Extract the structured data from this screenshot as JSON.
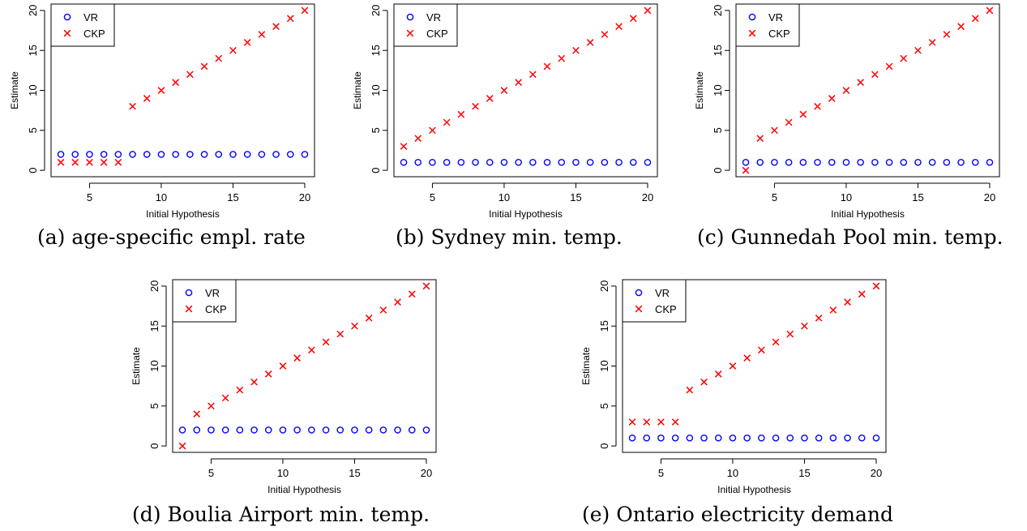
{
  "chart_data": [
    {
      "type": "scatter",
      "caption": "(a) age-specific empl. rate",
      "xlabel": "Initial Hypothesis",
      "ylabel": "Estimate",
      "xlim": [
        3,
        20
      ],
      "ylim": [
        0,
        20
      ],
      "xticks": [
        5,
        10,
        15,
        20
      ],
      "yticks": [
        0,
        5,
        10,
        15,
        20
      ],
      "legend_position": "top-left",
      "x": [
        3,
        4,
        5,
        6,
        7,
        8,
        9,
        10,
        11,
        12,
        13,
        14,
        15,
        16,
        17,
        18,
        19,
        20
      ],
      "series": [
        {
          "name": "VR",
          "marker": "circle",
          "color": "#0000ff",
          "values": [
            2,
            2,
            2,
            2,
            2,
            2,
            2,
            2,
            2,
            2,
            2,
            2,
            2,
            2,
            2,
            2,
            2,
            2
          ]
        },
        {
          "name": "CKP",
          "marker": "cross",
          "color": "#ff0000",
          "values": [
            1,
            1,
            1,
            1,
            1,
            8,
            9,
            10,
            11,
            12,
            13,
            14,
            15,
            16,
            17,
            18,
            19,
            20
          ]
        }
      ]
    },
    {
      "type": "scatter",
      "caption": "(b) Sydney min. temp.",
      "xlabel": "Initial Hypothesis",
      "ylabel": "Estimate",
      "xlim": [
        3,
        20
      ],
      "ylim": [
        0,
        20
      ],
      "xticks": [
        5,
        10,
        15,
        20
      ],
      "yticks": [
        0,
        5,
        10,
        15,
        20
      ],
      "legend_position": "top-left",
      "x": [
        3,
        4,
        5,
        6,
        7,
        8,
        9,
        10,
        11,
        12,
        13,
        14,
        15,
        16,
        17,
        18,
        19,
        20
      ],
      "series": [
        {
          "name": "VR",
          "marker": "circle",
          "color": "#0000ff",
          "values": [
            1,
            1,
            1,
            1,
            1,
            1,
            1,
            1,
            1,
            1,
            1,
            1,
            1,
            1,
            1,
            1,
            1,
            1
          ]
        },
        {
          "name": "CKP",
          "marker": "cross",
          "color": "#ff0000",
          "values": [
            3,
            4,
            5,
            6,
            7,
            8,
            9,
            10,
            11,
            12,
            13,
            14,
            15,
            16,
            17,
            18,
            19,
            20
          ]
        }
      ]
    },
    {
      "type": "scatter",
      "caption": "(c) Gunnedah Pool min. temp.",
      "xlabel": "Initial Hypothesis",
      "ylabel": "Estimate",
      "xlim": [
        3,
        20
      ],
      "ylim": [
        0,
        20
      ],
      "xticks": [
        5,
        10,
        15,
        20
      ],
      "yticks": [
        0,
        5,
        10,
        15,
        20
      ],
      "legend_position": "top-left",
      "x": [
        3,
        4,
        5,
        6,
        7,
        8,
        9,
        10,
        11,
        12,
        13,
        14,
        15,
        16,
        17,
        18,
        19,
        20
      ],
      "series": [
        {
          "name": "VR",
          "marker": "circle",
          "color": "#0000ff",
          "values": [
            1,
            1,
            1,
            1,
            1,
            1,
            1,
            1,
            1,
            1,
            1,
            1,
            1,
            1,
            1,
            1,
            1,
            1
          ]
        },
        {
          "name": "CKP",
          "marker": "cross",
          "color": "#ff0000",
          "values": [
            0,
            4,
            5,
            6,
            7,
            8,
            9,
            10,
            11,
            12,
            13,
            14,
            15,
            16,
            17,
            18,
            19,
            20
          ]
        }
      ]
    },
    {
      "type": "scatter",
      "caption": "(d) Boulia Airport min. temp.",
      "xlabel": "Initial Hypothesis",
      "ylabel": "Estimate",
      "xlim": [
        3,
        20
      ],
      "ylim": [
        0,
        20
      ],
      "xticks": [
        5,
        10,
        15,
        20
      ],
      "yticks": [
        0,
        5,
        10,
        15,
        20
      ],
      "legend_position": "top-left",
      "x": [
        3,
        4,
        5,
        6,
        7,
        8,
        9,
        10,
        11,
        12,
        13,
        14,
        15,
        16,
        17,
        18,
        19,
        20
      ],
      "series": [
        {
          "name": "VR",
          "marker": "circle",
          "color": "#0000ff",
          "values": [
            2,
            2,
            2,
            2,
            2,
            2,
            2,
            2,
            2,
            2,
            2,
            2,
            2,
            2,
            2,
            2,
            2,
            2
          ]
        },
        {
          "name": "CKP",
          "marker": "cross",
          "color": "#ff0000",
          "values": [
            0,
            4,
            5,
            6,
            7,
            8,
            9,
            10,
            11,
            12,
            13,
            14,
            15,
            16,
            17,
            18,
            19,
            20
          ]
        }
      ]
    },
    {
      "type": "scatter",
      "caption": "(e) Ontario electricity demand",
      "xlabel": "Initial Hypothesis",
      "ylabel": "Estimate",
      "xlim": [
        3,
        20
      ],
      "ylim": [
        0,
        20
      ],
      "xticks": [
        5,
        10,
        15,
        20
      ],
      "yticks": [
        0,
        5,
        10,
        15,
        20
      ],
      "legend_position": "top-left",
      "x": [
        3,
        4,
        5,
        6,
        7,
        8,
        9,
        10,
        11,
        12,
        13,
        14,
        15,
        16,
        17,
        18,
        19,
        20
      ],
      "series": [
        {
          "name": "VR",
          "marker": "circle",
          "color": "#0000ff",
          "values": [
            1,
            1,
            1,
            1,
            1,
            1,
            1,
            1,
            1,
            1,
            1,
            1,
            1,
            1,
            1,
            1,
            1,
            1
          ]
        },
        {
          "name": "CKP",
          "marker": "cross",
          "color": "#ff0000",
          "values": [
            3,
            3,
            3,
            3,
            7,
            8,
            9,
            10,
            11,
            12,
            13,
            14,
            15,
            16,
            17,
            18,
            19,
            20
          ]
        }
      ]
    }
  ]
}
